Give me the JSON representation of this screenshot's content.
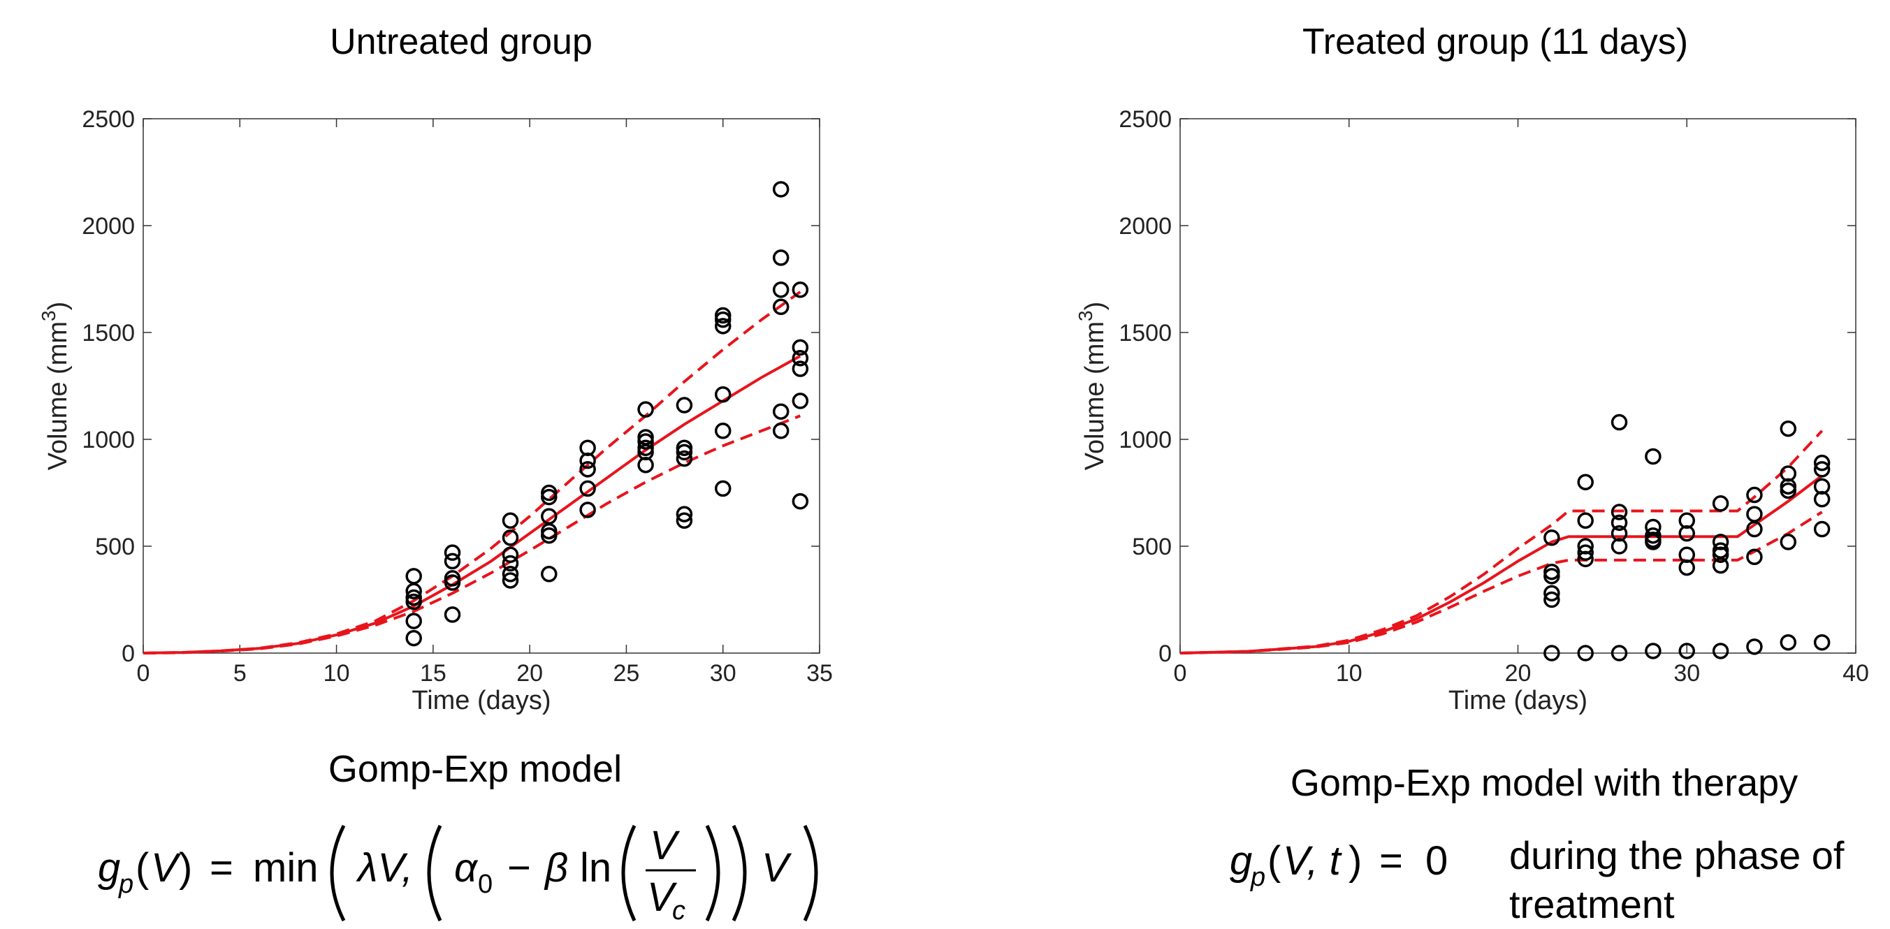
{
  "chart_data": [
    {
      "type": "scatter",
      "title": "Untreated group",
      "xlabel": "Time (days)",
      "ylabel": "Volume (mm",
      "ylabel_sup": "3",
      "ylabel_close": ")",
      "xlim": [
        0,
        35
      ],
      "ylim": [
        0,
        2500
      ],
      "xticks": [
        0,
        5,
        10,
        15,
        20,
        25,
        30,
        35
      ],
      "yticks": [
        0,
        500,
        1000,
        1500,
        2000,
        2500
      ],
      "grid": false,
      "points": [
        [
          14,
          360
        ],
        [
          14,
          290
        ],
        [
          14,
          260
        ],
        [
          14,
          240
        ],
        [
          14,
          150
        ],
        [
          14,
          70
        ],
        [
          16,
          470
        ],
        [
          16,
          430
        ],
        [
          16,
          350
        ],
        [
          16,
          330
        ],
        [
          16,
          180
        ],
        [
          19,
          620
        ],
        [
          19,
          540
        ],
        [
          19,
          460
        ],
        [
          19,
          420
        ],
        [
          19,
          370
        ],
        [
          19,
          340
        ],
        [
          21,
          750
        ],
        [
          21,
          730
        ],
        [
          21,
          640
        ],
        [
          21,
          570
        ],
        [
          21,
          550
        ],
        [
          21,
          370
        ],
        [
          23,
          960
        ],
        [
          23,
          900
        ],
        [
          23,
          860
        ],
        [
          23,
          770
        ],
        [
          23,
          670
        ],
        [
          26,
          1140
        ],
        [
          26,
          1010
        ],
        [
          26,
          990
        ],
        [
          26,
          960
        ],
        [
          26,
          940
        ],
        [
          26,
          880
        ],
        [
          28,
          1160
        ],
        [
          28,
          960
        ],
        [
          28,
          940
        ],
        [
          28,
          910
        ],
        [
          28,
          650
        ],
        [
          28,
          620
        ],
        [
          30,
          1580
        ],
        [
          30,
          1560
        ],
        [
          30,
          1530
        ],
        [
          30,
          1210
        ],
        [
          30,
          1040
        ],
        [
          30,
          770
        ],
        [
          33,
          2170
        ],
        [
          33,
          1850
        ],
        [
          33,
          1700
        ],
        [
          33,
          1620
        ],
        [
          33,
          1130
        ],
        [
          33,
          1040
        ],
        [
          34,
          1700
        ],
        [
          34,
          1430
        ],
        [
          34,
          1380
        ],
        [
          34,
          1330
        ],
        [
          34,
          1180
        ],
        [
          34,
          710
        ]
      ],
      "lines": [
        {
          "style": "solid",
          "color": "#e8141c",
          "x": [
            0,
            2,
            4,
            6,
            8,
            10,
            12,
            14,
            16,
            18,
            20,
            22,
            24,
            26,
            28,
            30,
            32,
            34
          ],
          "y": [
            0,
            3,
            10,
            22,
            45,
            85,
            140,
            220,
            320,
            430,
            560,
            690,
            820,
            950,
            1070,
            1180,
            1290,
            1390
          ]
        },
        {
          "style": "dashed",
          "color": "#e8141c",
          "x": [
            0,
            2,
            4,
            6,
            8,
            10,
            12,
            14,
            16,
            18,
            20,
            22,
            24,
            26,
            28,
            30,
            32,
            34
          ],
          "y": [
            0,
            3,
            10,
            23,
            48,
            90,
            150,
            245,
            360,
            490,
            640,
            800,
            960,
            1110,
            1270,
            1420,
            1560,
            1690
          ]
        },
        {
          "style": "dashed",
          "color": "#e8141c",
          "x": [
            0,
            2,
            4,
            6,
            8,
            10,
            12,
            14,
            16,
            18,
            20,
            22,
            24,
            26,
            28,
            30,
            32,
            34
          ],
          "y": [
            0,
            2,
            9,
            20,
            42,
            80,
            130,
            195,
            280,
            375,
            480,
            590,
            700,
            800,
            890,
            970,
            1040,
            1110
          ]
        }
      ]
    },
    {
      "type": "scatter",
      "title": "Treated group (11 days)",
      "xlabel": "Time (days)",
      "ylabel": "Volume (mm",
      "ylabel_sup": "3",
      "ylabel_close": ")",
      "xlim": [
        0,
        40
      ],
      "ylim": [
        0,
        2500
      ],
      "xticks": [
        0,
        10,
        20,
        30,
        40
      ],
      "yticks": [
        0,
        500,
        1000,
        1500,
        2000,
        2500
      ],
      "grid": false,
      "points": [
        [
          22,
          540
        ],
        [
          22,
          380
        ],
        [
          22,
          360
        ],
        [
          22,
          280
        ],
        [
          22,
          250
        ],
        [
          22,
          0
        ],
        [
          24,
          800
        ],
        [
          24,
          620
        ],
        [
          24,
          500
        ],
        [
          24,
          470
        ],
        [
          24,
          440
        ],
        [
          24,
          0
        ],
        [
          26,
          1080
        ],
        [
          26,
          660
        ],
        [
          26,
          610
        ],
        [
          26,
          560
        ],
        [
          26,
          500
        ],
        [
          26,
          0
        ],
        [
          28,
          920
        ],
        [
          28,
          590
        ],
        [
          28,
          550
        ],
        [
          28,
          530
        ],
        [
          28,
          520
        ],
        [
          28,
          10
        ],
        [
          30,
          620
        ],
        [
          30,
          560
        ],
        [
          30,
          460
        ],
        [
          30,
          400
        ],
        [
          30,
          10
        ],
        [
          32,
          700
        ],
        [
          32,
          520
        ],
        [
          32,
          480
        ],
        [
          32,
          460
        ],
        [
          32,
          410
        ],
        [
          32,
          10
        ],
        [
          34,
          740
        ],
        [
          34,
          650
        ],
        [
          34,
          580
        ],
        [
          34,
          450
        ],
        [
          34,
          30
        ],
        [
          36,
          1050
        ],
        [
          36,
          840
        ],
        [
          36,
          780
        ],
        [
          36,
          760
        ],
        [
          36,
          520
        ],
        [
          36,
          50
        ],
        [
          38,
          890
        ],
        [
          38,
          860
        ],
        [
          38,
          780
        ],
        [
          38,
          720
        ],
        [
          38,
          580
        ],
        [
          38,
          50
        ]
      ],
      "lines": [
        {
          "style": "solid",
          "color": "#e8141c",
          "x": [
            0,
            4,
            8,
            10,
            12,
            14,
            16,
            18,
            20,
            22,
            23,
            33,
            34,
            36,
            38
          ],
          "y": [
            0,
            8,
            30,
            55,
            100,
            160,
            240,
            330,
            430,
            520,
            545,
            545,
            600,
            710,
            830
          ]
        },
        {
          "style": "dashed",
          "color": "#e8141c",
          "x": [
            0,
            4,
            8,
            10,
            12,
            14,
            16,
            18,
            20,
            22,
            23,
            33,
            34,
            36,
            38
          ],
          "y": [
            0,
            8,
            32,
            60,
            110,
            175,
            265,
            370,
            490,
            600,
            665,
            665,
            730,
            870,
            1040
          ]
        },
        {
          "style": "dashed",
          "color": "#e8141c",
          "x": [
            0,
            4,
            8,
            10,
            12,
            14,
            16,
            18,
            20,
            22,
            23,
            33,
            34,
            36,
            38
          ],
          "y": [
            0,
            7,
            28,
            50,
            90,
            145,
            215,
            290,
            360,
            420,
            435,
            435,
            475,
            560,
            660
          ]
        }
      ]
    }
  ],
  "models": {
    "left_title": "Gomp-Exp model",
    "right_title": "Gomp-Exp model with therapy",
    "right_text_line1": "during the phase of",
    "right_text_line2": "treatment"
  }
}
